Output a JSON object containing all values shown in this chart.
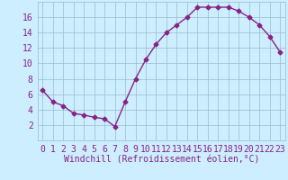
{
  "x": [
    0,
    1,
    2,
    3,
    4,
    5,
    6,
    7,
    8,
    9,
    10,
    11,
    12,
    13,
    14,
    15,
    16,
    17,
    18,
    19,
    20,
    21,
    22,
    23
  ],
  "y": [
    6.5,
    5.0,
    4.5,
    3.5,
    3.3,
    3.0,
    2.8,
    1.8,
    5.0,
    8.0,
    10.5,
    12.5,
    14.0,
    15.0,
    16.0,
    17.3,
    17.3,
    17.3,
    17.3,
    16.8,
    16.0,
    15.0,
    13.5,
    11.5
  ],
  "line_color": "#882288",
  "marker": "D",
  "marker_size": 2.5,
  "bg_color": "#cceeff",
  "grid_color": "#99bbcc",
  "xlabel": "Windchill (Refroidissement éolien,°C)",
  "xlim": [
    -0.5,
    23.5
  ],
  "ylim": [
    0,
    18
  ],
  "yticks": [
    2,
    4,
    6,
    8,
    10,
    12,
    14,
    16
  ],
  "xticks": [
    0,
    1,
    2,
    3,
    4,
    5,
    6,
    7,
    8,
    9,
    10,
    11,
    12,
    13,
    14,
    15,
    16,
    17,
    18,
    19,
    20,
    21,
    22,
    23
  ],
  "tick_label_color": "#882288",
  "xlabel_color": "#882288",
  "xlabel_fontsize": 7,
  "tick_fontsize": 7,
  "line_width": 1.0
}
